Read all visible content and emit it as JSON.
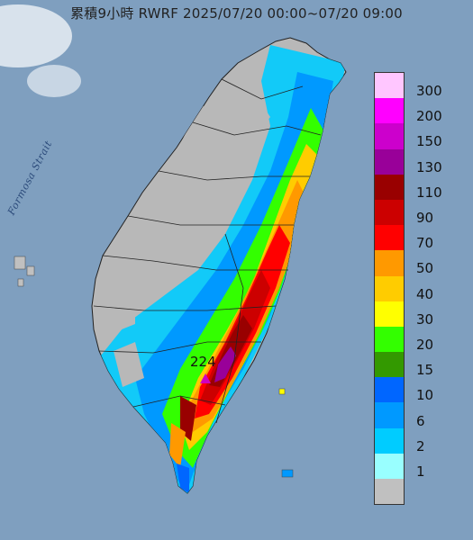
{
  "header": {
    "title": "累積9小時 RWRF 2025/07/20 00:00~07/20 09:00"
  },
  "map": {
    "strait_label": "Formosa Strait",
    "max_value_label": "224",
    "sea_color": "#7f9fbf",
    "land_color": "#b8b8b8"
  },
  "legend": {
    "items": [
      {
        "label": "300",
        "color": "#ffc6ff"
      },
      {
        "label": "200",
        "color": "#ff00ff"
      },
      {
        "label": "150",
        "color": "#cc00cc"
      },
      {
        "label": "130",
        "color": "#990099"
      },
      {
        "label": "110",
        "color": "#990000"
      },
      {
        "label": "90",
        "color": "#cc0000"
      },
      {
        "label": "70",
        "color": "#ff0000"
      },
      {
        "label": "50",
        "color": "#ff9900"
      },
      {
        "label": "40",
        "color": "#ffcc00"
      },
      {
        "label": "30",
        "color": "#ffff00"
      },
      {
        "label": "20",
        "color": "#33ff00"
      },
      {
        "label": "15",
        "color": "#339900"
      },
      {
        "label": "10",
        "color": "#0066ff"
      },
      {
        "label": "6",
        "color": "#0099ff"
      },
      {
        "label": "2",
        "color": "#00ccff"
      },
      {
        "label": "1",
        "color": "#99ffff"
      },
      {
        "label": "",
        "color": "#c0c0c0"
      }
    ]
  }
}
